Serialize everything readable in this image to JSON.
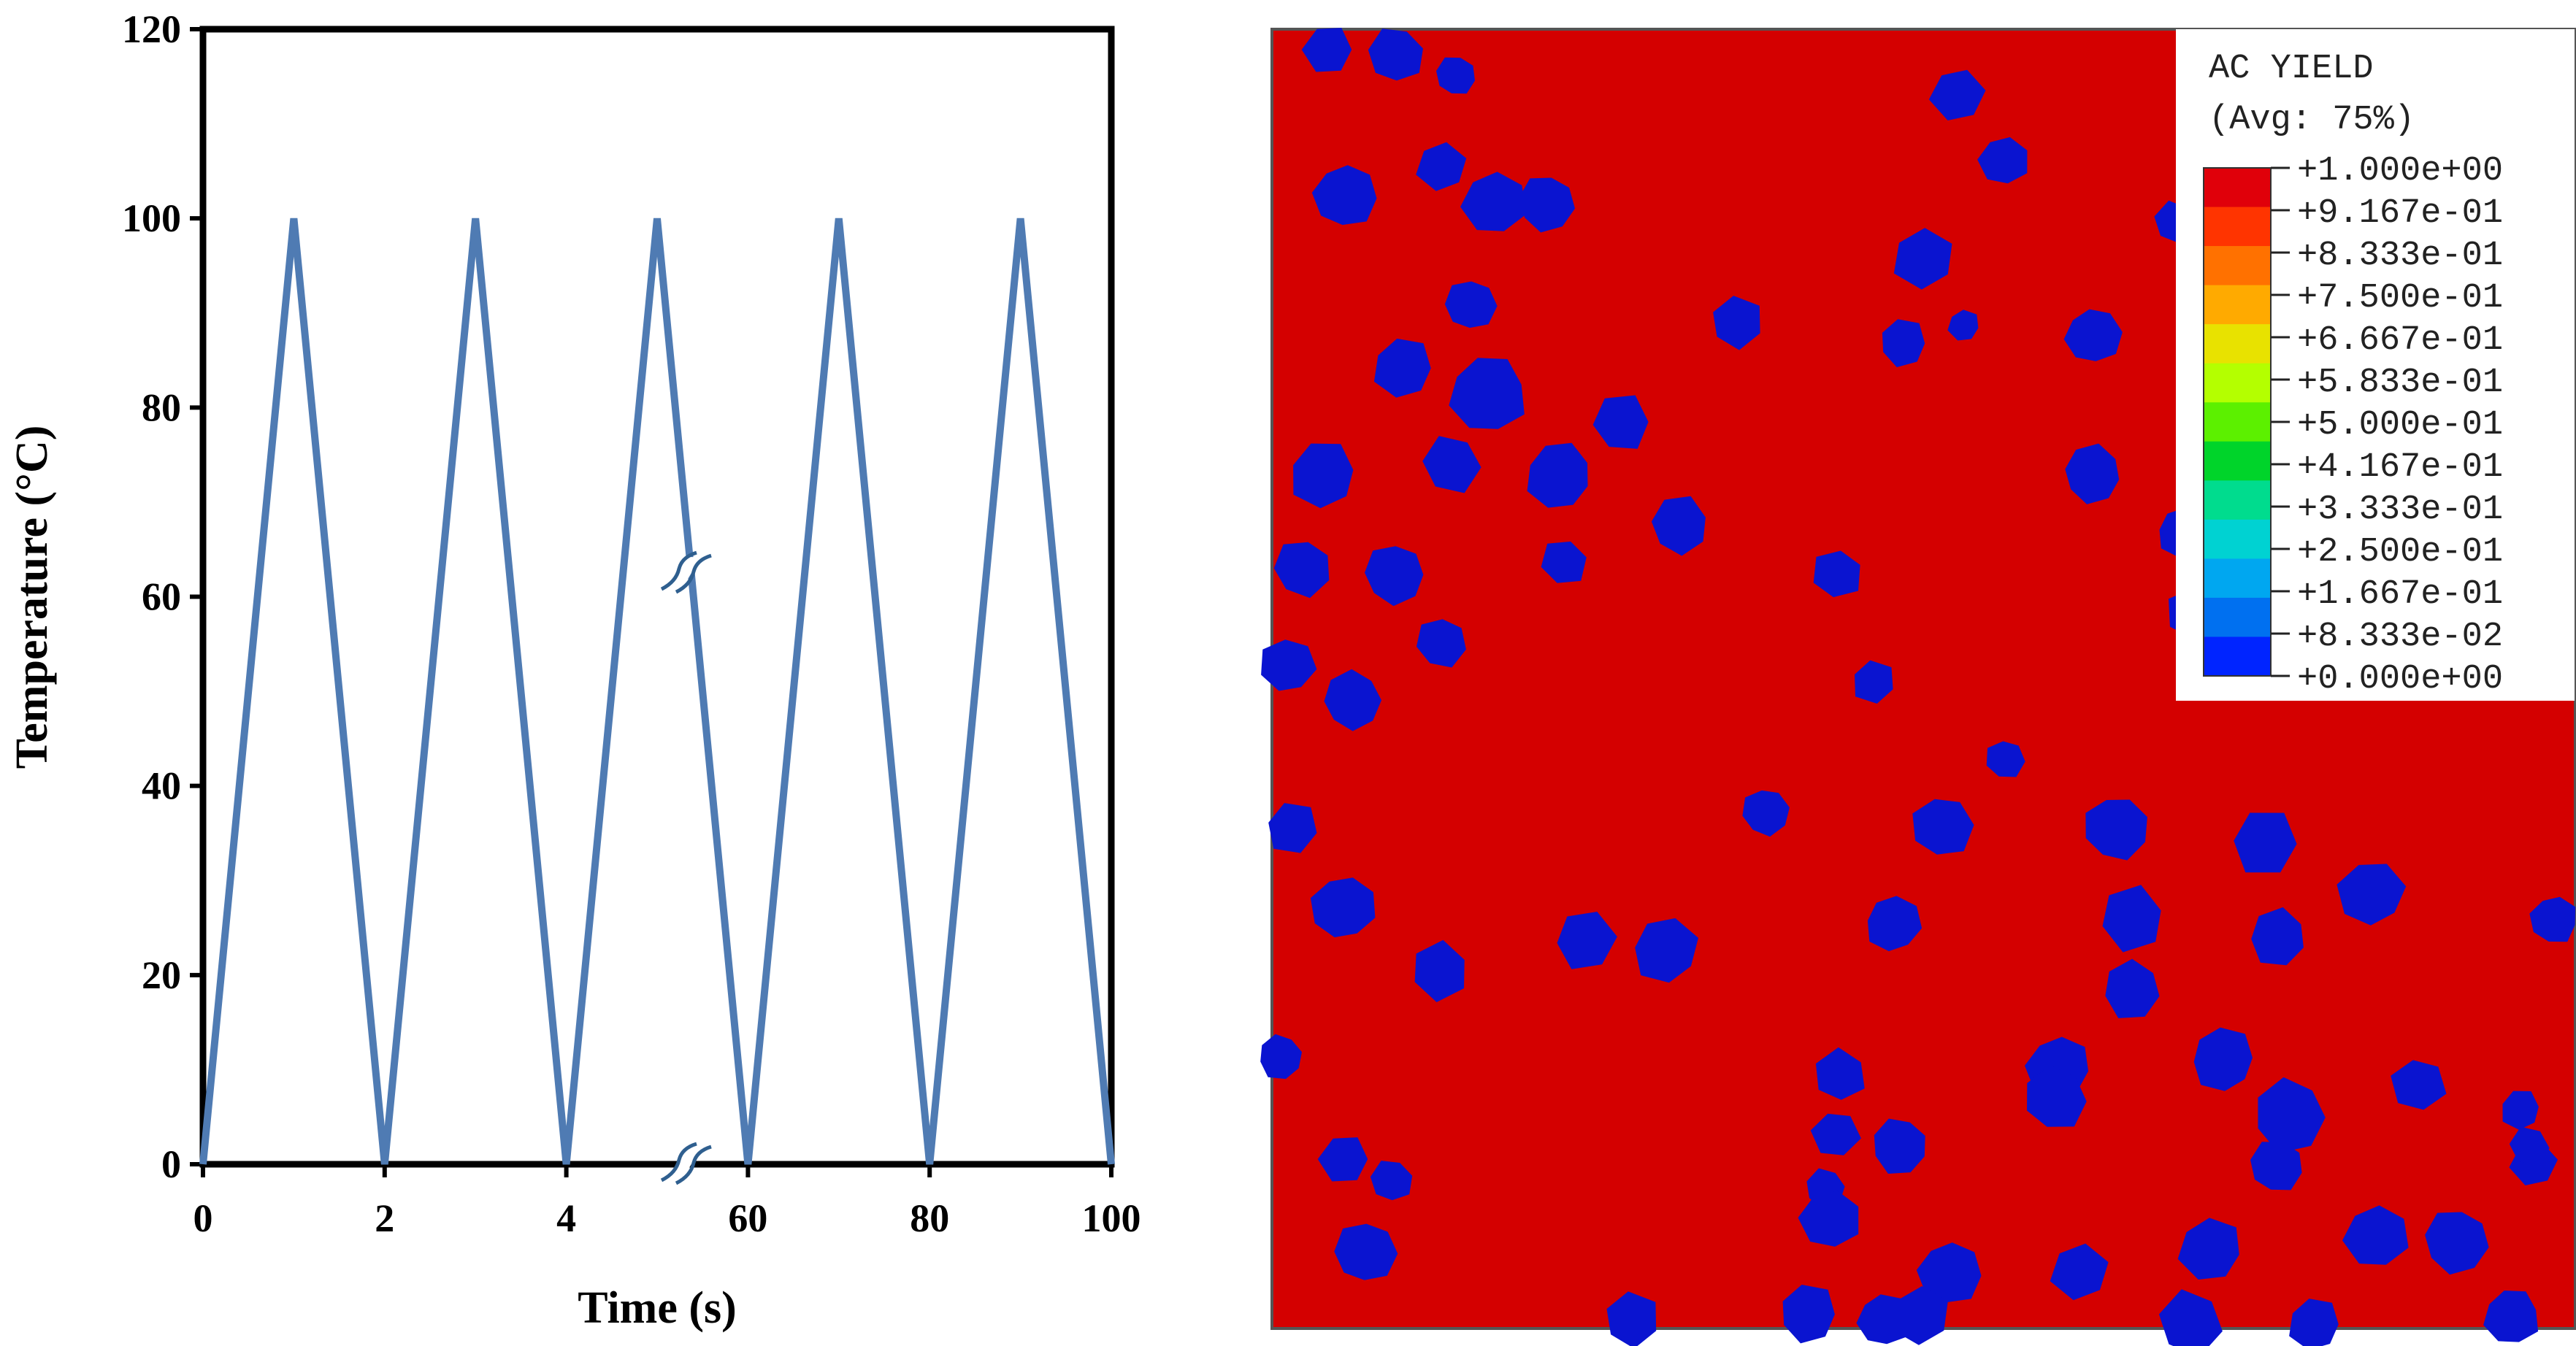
{
  "chart_data": [
    {
      "type": "line",
      "title": "",
      "xlabel": "Time (s)",
      "ylabel": "Temperature (°C)",
      "ylim": [
        0,
        120
      ],
      "y_ticks": [
        0,
        20,
        40,
        60,
        80,
        100,
        120
      ],
      "x_tick_labels": [
        "0",
        "2",
        "4",
        "60",
        "80",
        "100"
      ],
      "x_axis_break": "between 4 and 60",
      "grid": false,
      "legend": "none",
      "line_color": "#4f7bb3",
      "series": [
        {
          "x": [
            "0",
            "1",
            "2",
            "3",
            "4",
            "5",
            "60",
            "70",
            "80",
            "90",
            "100"
          ],
          "values": [
            0,
            100,
            0,
            100,
            0,
            100,
            0,
            100,
            0,
            100,
            0
          ]
        }
      ]
    },
    {
      "type": "heatmap",
      "legend": "top-right",
      "legend_title": [
        "AC YIELD",
        "(Avg: 75%)"
      ],
      "legend_levels": [
        "+1.000e+00",
        "+9.167e-01",
        "+8.333e-01",
        "+7.500e-01",
        "+6.667e-01",
        "+5.833e-01",
        "+5.000e-01",
        "+4.167e-01",
        "+3.333e-01",
        "+2.500e-01",
        "+1.667e-01",
        "+8.333e-02",
        "+0.000e+00"
      ],
      "legend_colors": [
        "#e0000a",
        "#ff3400",
        "#ff7100",
        "#ffaa00",
        "#e8e200",
        "#b4ff00",
        "#5cf000",
        "#00d42a",
        "#00dc8e",
        "#00d2d2",
        "#00a7f0",
        "#0070f0",
        "#0024ff"
      ],
      "field_colors": {
        "yield": "#d40000",
        "no_yield": "#0a14d0"
      }
    }
  ]
}
